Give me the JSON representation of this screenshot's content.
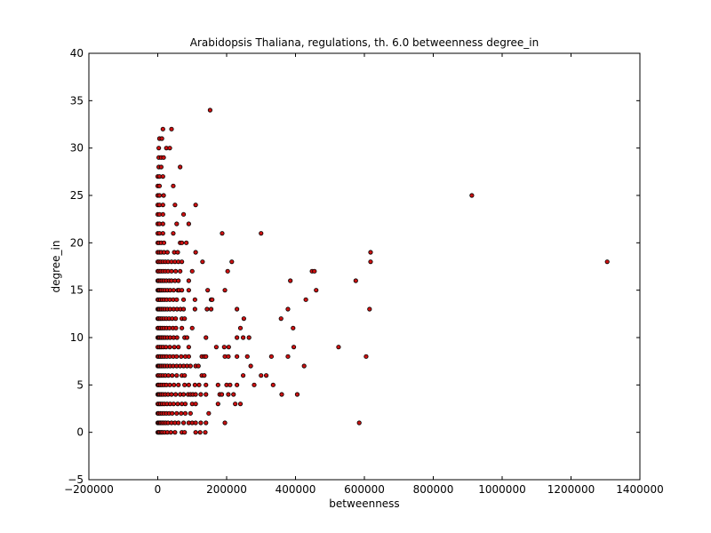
{
  "chart_data": {
    "type": "scatter",
    "title": "Arabidopsis Thaliana, regulations, th. 6.0 betweenness degree_in",
    "xlabel": "betweenness",
    "ylabel": "degree_in",
    "xlim": [
      -200000,
      1400000
    ],
    "ylim": [
      -5,
      40
    ],
    "xticks": [
      -200000,
      0,
      200000,
      400000,
      600000,
      800000,
      1000000,
      1200000,
      1400000
    ],
    "xtick_labels": [
      "−200000",
      "0",
      "200000",
      "400000",
      "600000",
      "800000",
      "1000000",
      "1200000",
      "1400000"
    ],
    "yticks": [
      -5,
      0,
      5,
      10,
      15,
      20,
      25,
      30,
      35,
      40
    ],
    "ytick_labels": [
      "−5",
      "0",
      "5",
      "10",
      "15",
      "20",
      "25",
      "30",
      "35",
      "40"
    ],
    "grid": false,
    "marker_color": "#cc1111",
    "marker_edge": "#000000",
    "points": [
      [
        0,
        0
      ],
      [
        3000,
        0
      ],
      [
        6000,
        0
      ],
      [
        10000,
        0
      ],
      [
        14000,
        0
      ],
      [
        20000,
        0
      ],
      [
        28000,
        0
      ],
      [
        38000,
        0
      ],
      [
        50000,
        0
      ],
      [
        70000,
        0
      ],
      [
        78000,
        0
      ],
      [
        110000,
        0
      ],
      [
        123000,
        0
      ],
      [
        138000,
        0
      ],
      [
        0,
        1
      ],
      [
        2000,
        1
      ],
      [
        5000,
        1
      ],
      [
        8000,
        1
      ],
      [
        12000,
        1
      ],
      [
        17000,
        1
      ],
      [
        23000,
        1
      ],
      [
        30000,
        1
      ],
      [
        40000,
        1
      ],
      [
        50000,
        1
      ],
      [
        60000,
        1
      ],
      [
        75000,
        1
      ],
      [
        90000,
        1
      ],
      [
        100000,
        1
      ],
      [
        110000,
        1
      ],
      [
        125000,
        1
      ],
      [
        140000,
        1
      ],
      [
        195000,
        1
      ],
      [
        585000,
        1
      ],
      [
        0,
        2
      ],
      [
        3000,
        2
      ],
      [
        7000,
        2
      ],
      [
        12000,
        2
      ],
      [
        18000,
        2
      ],
      [
        25000,
        2
      ],
      [
        33000,
        2
      ],
      [
        42000,
        2
      ],
      [
        55000,
        2
      ],
      [
        68000,
        2
      ],
      [
        80000,
        2
      ],
      [
        95000,
        2
      ],
      [
        148000,
        2
      ],
      [
        0,
        3
      ],
      [
        4000,
        3
      ],
      [
        8000,
        3
      ],
      [
        13000,
        3
      ],
      [
        19000,
        3
      ],
      [
        27000,
        3
      ],
      [
        36000,
        3
      ],
      [
        46000,
        3
      ],
      [
        58000,
        3
      ],
      [
        70000,
        3
      ],
      [
        80000,
        3
      ],
      [
        100000,
        3
      ],
      [
        110000,
        3
      ],
      [
        175000,
        3
      ],
      [
        225000,
        3
      ],
      [
        240000,
        3
      ],
      [
        0,
        4
      ],
      [
        3000,
        4
      ],
      [
        6000,
        4
      ],
      [
        10000,
        4
      ],
      [
        15000,
        4
      ],
      [
        22000,
        4
      ],
      [
        30000,
        4
      ],
      [
        40000,
        4
      ],
      [
        52000,
        4
      ],
      [
        65000,
        4
      ],
      [
        75000,
        4
      ],
      [
        88000,
        4
      ],
      [
        95000,
        4
      ],
      [
        102000,
        4
      ],
      [
        110000,
        4
      ],
      [
        125000,
        4
      ],
      [
        140000,
        4
      ],
      [
        180000,
        4
      ],
      [
        186000,
        4
      ],
      [
        205000,
        4
      ],
      [
        220000,
        4
      ],
      [
        360000,
        4
      ],
      [
        405000,
        4
      ],
      [
        0,
        5
      ],
      [
        3000,
        5
      ],
      [
        7000,
        5
      ],
      [
        12000,
        5
      ],
      [
        18000,
        5
      ],
      [
        25000,
        5
      ],
      [
        35000,
        5
      ],
      [
        47000,
        5
      ],
      [
        60000,
        5
      ],
      [
        78000,
        5
      ],
      [
        90000,
        5
      ],
      [
        108000,
        5
      ],
      [
        120000,
        5
      ],
      [
        140000,
        5
      ],
      [
        175000,
        5
      ],
      [
        200000,
        5
      ],
      [
        210000,
        5
      ],
      [
        230000,
        5
      ],
      [
        280000,
        5
      ],
      [
        335000,
        5
      ],
      [
        0,
        6
      ],
      [
        4000,
        6
      ],
      [
        9000,
        6
      ],
      [
        15000,
        6
      ],
      [
        22000,
        6
      ],
      [
        31000,
        6
      ],
      [
        42000,
        6
      ],
      [
        55000,
        6
      ],
      [
        70000,
        6
      ],
      [
        78000,
        6
      ],
      [
        128000,
        6
      ],
      [
        135000,
        6
      ],
      [
        248000,
        6
      ],
      [
        300000,
        6
      ],
      [
        315000,
        6
      ],
      [
        0,
        7
      ],
      [
        3000,
        7
      ],
      [
        6000,
        7
      ],
      [
        10000,
        7
      ],
      [
        15000,
        7
      ],
      [
        21000,
        7
      ],
      [
        28000,
        7
      ],
      [
        36000,
        7
      ],
      [
        45000,
        7
      ],
      [
        55000,
        7
      ],
      [
        65000,
        7
      ],
      [
        75000,
        7
      ],
      [
        85000,
        7
      ],
      [
        95000,
        7
      ],
      [
        110000,
        7
      ],
      [
        118000,
        7
      ],
      [
        270000,
        7
      ],
      [
        425000,
        7
      ],
      [
        0,
        8
      ],
      [
        4000,
        8
      ],
      [
        8000,
        8
      ],
      [
        13000,
        8
      ],
      [
        19000,
        8
      ],
      [
        26000,
        8
      ],
      [
        35000,
        8
      ],
      [
        45000,
        8
      ],
      [
        55000,
        8
      ],
      [
        68000,
        8
      ],
      [
        80000,
        8
      ],
      [
        90000,
        8
      ],
      [
        128000,
        8
      ],
      [
        135000,
        8
      ],
      [
        140000,
        8
      ],
      [
        195000,
        8
      ],
      [
        205000,
        8
      ],
      [
        230000,
        8
      ],
      [
        260000,
        8
      ],
      [
        330000,
        8
      ],
      [
        378000,
        8
      ],
      [
        605000,
        8
      ],
      [
        0,
        9
      ],
      [
        5000,
        9
      ],
      [
        10000,
        9
      ],
      [
        16000,
        9
      ],
      [
        24000,
        9
      ],
      [
        35000,
        9
      ],
      [
        48000,
        9
      ],
      [
        60000,
        9
      ],
      [
        90000,
        9
      ],
      [
        170000,
        9
      ],
      [
        193000,
        9
      ],
      [
        206000,
        9
      ],
      [
        395000,
        9
      ],
      [
        525000,
        9
      ],
      [
        0,
        10
      ],
      [
        3000,
        10
      ],
      [
        6000,
        10
      ],
      [
        10000,
        10
      ],
      [
        15000,
        10
      ],
      [
        21000,
        10
      ],
      [
        28000,
        10
      ],
      [
        36000,
        10
      ],
      [
        46000,
        10
      ],
      [
        56000,
        10
      ],
      [
        78000,
        10
      ],
      [
        85000,
        10
      ],
      [
        140000,
        10
      ],
      [
        230000,
        10
      ],
      [
        248000,
        10
      ],
      [
        265000,
        10
      ],
      [
        0,
        11
      ],
      [
        4000,
        11
      ],
      [
        8000,
        11
      ],
      [
        13000,
        11
      ],
      [
        19000,
        11
      ],
      [
        26000,
        11
      ],
      [
        34000,
        11
      ],
      [
        44000,
        11
      ],
      [
        53000,
        11
      ],
      [
        70000,
        11
      ],
      [
        100000,
        11
      ],
      [
        240000,
        11
      ],
      [
        393000,
        11
      ],
      [
        0,
        12
      ],
      [
        3000,
        12
      ],
      [
        7000,
        12
      ],
      [
        12000,
        12
      ],
      [
        18000,
        12
      ],
      [
        25000,
        12
      ],
      [
        33000,
        12
      ],
      [
        42000,
        12
      ],
      [
        52000,
        12
      ],
      [
        70000,
        12
      ],
      [
        78000,
        12
      ],
      [
        250000,
        12
      ],
      [
        358000,
        12
      ],
      [
        0,
        13
      ],
      [
        3000,
        13
      ],
      [
        6000,
        13
      ],
      [
        10000,
        13
      ],
      [
        15000,
        13
      ],
      [
        21000,
        13
      ],
      [
        28000,
        13
      ],
      [
        36000,
        13
      ],
      [
        46000,
        13
      ],
      [
        56000,
        13
      ],
      [
        66000,
        13
      ],
      [
        75000,
        13
      ],
      [
        108000,
        13
      ],
      [
        143000,
        13
      ],
      [
        155000,
        13
      ],
      [
        230000,
        13
      ],
      [
        378000,
        13
      ],
      [
        615000,
        13
      ],
      [
        0,
        14
      ],
      [
        4000,
        14
      ],
      [
        8000,
        14
      ],
      [
        13000,
        14
      ],
      [
        19000,
        14
      ],
      [
        26000,
        14
      ],
      [
        35000,
        14
      ],
      [
        45000,
        14
      ],
      [
        55000,
        14
      ],
      [
        75000,
        14
      ],
      [
        108000,
        14
      ],
      [
        155000,
        14
      ],
      [
        158000,
        14
      ],
      [
        430000,
        14
      ],
      [
        0,
        15
      ],
      [
        3000,
        15
      ],
      [
        6000,
        15
      ],
      [
        10000,
        15
      ],
      [
        15000,
        15
      ],
      [
        21000,
        15
      ],
      [
        28000,
        15
      ],
      [
        36000,
        15
      ],
      [
        46000,
        15
      ],
      [
        58000,
        15
      ],
      [
        62000,
        15
      ],
      [
        70000,
        15
      ],
      [
        90000,
        15
      ],
      [
        145000,
        15
      ],
      [
        195000,
        15
      ],
      [
        460000,
        15
      ],
      [
        0,
        16
      ],
      [
        3000,
        16
      ],
      [
        7000,
        16
      ],
      [
        12000,
        16
      ],
      [
        18000,
        16
      ],
      [
        25000,
        16
      ],
      [
        33000,
        16
      ],
      [
        40000,
        16
      ],
      [
        50000,
        16
      ],
      [
        60000,
        16
      ],
      [
        90000,
        16
      ],
      [
        385000,
        16
      ],
      [
        575000,
        16
      ],
      [
        0,
        17
      ],
      [
        4000,
        17
      ],
      [
        9000,
        17
      ],
      [
        15000,
        17
      ],
      [
        22000,
        17
      ],
      [
        30000,
        17
      ],
      [
        40000,
        17
      ],
      [
        52000,
        17
      ],
      [
        65000,
        17
      ],
      [
        100000,
        17
      ],
      [
        203000,
        17
      ],
      [
        448000,
        17
      ],
      [
        455000,
        17
      ],
      [
        0,
        18
      ],
      [
        4000,
        18
      ],
      [
        9000,
        18
      ],
      [
        15000,
        18
      ],
      [
        22000,
        18
      ],
      [
        30000,
        18
      ],
      [
        40000,
        18
      ],
      [
        50000,
        18
      ],
      [
        60000,
        18
      ],
      [
        70000,
        18
      ],
      [
        130000,
        18
      ],
      [
        215000,
        18
      ],
      [
        618000,
        18
      ],
      [
        1305000,
        18
      ],
      [
        0,
        19
      ],
      [
        5000,
        19
      ],
      [
        10000,
        19
      ],
      [
        18000,
        19
      ],
      [
        28000,
        19
      ],
      [
        48000,
        19
      ],
      [
        58000,
        19
      ],
      [
        110000,
        19
      ],
      [
        618000,
        19
      ],
      [
        0,
        20
      ],
      [
        4000,
        20
      ],
      [
        10000,
        20
      ],
      [
        18000,
        20
      ],
      [
        65000,
        20
      ],
      [
        70000,
        20
      ],
      [
        83000,
        20
      ],
      [
        0,
        21
      ],
      [
        5000,
        21
      ],
      [
        15000,
        21
      ],
      [
        45000,
        21
      ],
      [
        187000,
        21
      ],
      [
        300000,
        21
      ],
      [
        0,
        22
      ],
      [
        5000,
        22
      ],
      [
        15000,
        22
      ],
      [
        55000,
        22
      ],
      [
        90000,
        22
      ],
      [
        0,
        23
      ],
      [
        5000,
        23
      ],
      [
        15000,
        23
      ],
      [
        75000,
        23
      ],
      [
        0,
        24
      ],
      [
        5000,
        24
      ],
      [
        15000,
        24
      ],
      [
        50000,
        24
      ],
      [
        110000,
        24
      ],
      [
        0,
        25
      ],
      [
        5000,
        25
      ],
      [
        17000,
        25
      ],
      [
        912000,
        25
      ],
      [
        0,
        26
      ],
      [
        5000,
        26
      ],
      [
        45000,
        26
      ],
      [
        0,
        27
      ],
      [
        5000,
        27
      ],
      [
        15000,
        27
      ],
      [
        3000,
        28
      ],
      [
        10000,
        28
      ],
      [
        65000,
        28
      ],
      [
        3000,
        29
      ],
      [
        10000,
        29
      ],
      [
        17000,
        29
      ],
      [
        3000,
        30
      ],
      [
        25000,
        30
      ],
      [
        35000,
        30
      ],
      [
        5000,
        31
      ],
      [
        12000,
        31
      ],
      [
        15000,
        32
      ],
      [
        40000,
        32
      ],
      [
        152000,
        34
      ]
    ]
  }
}
